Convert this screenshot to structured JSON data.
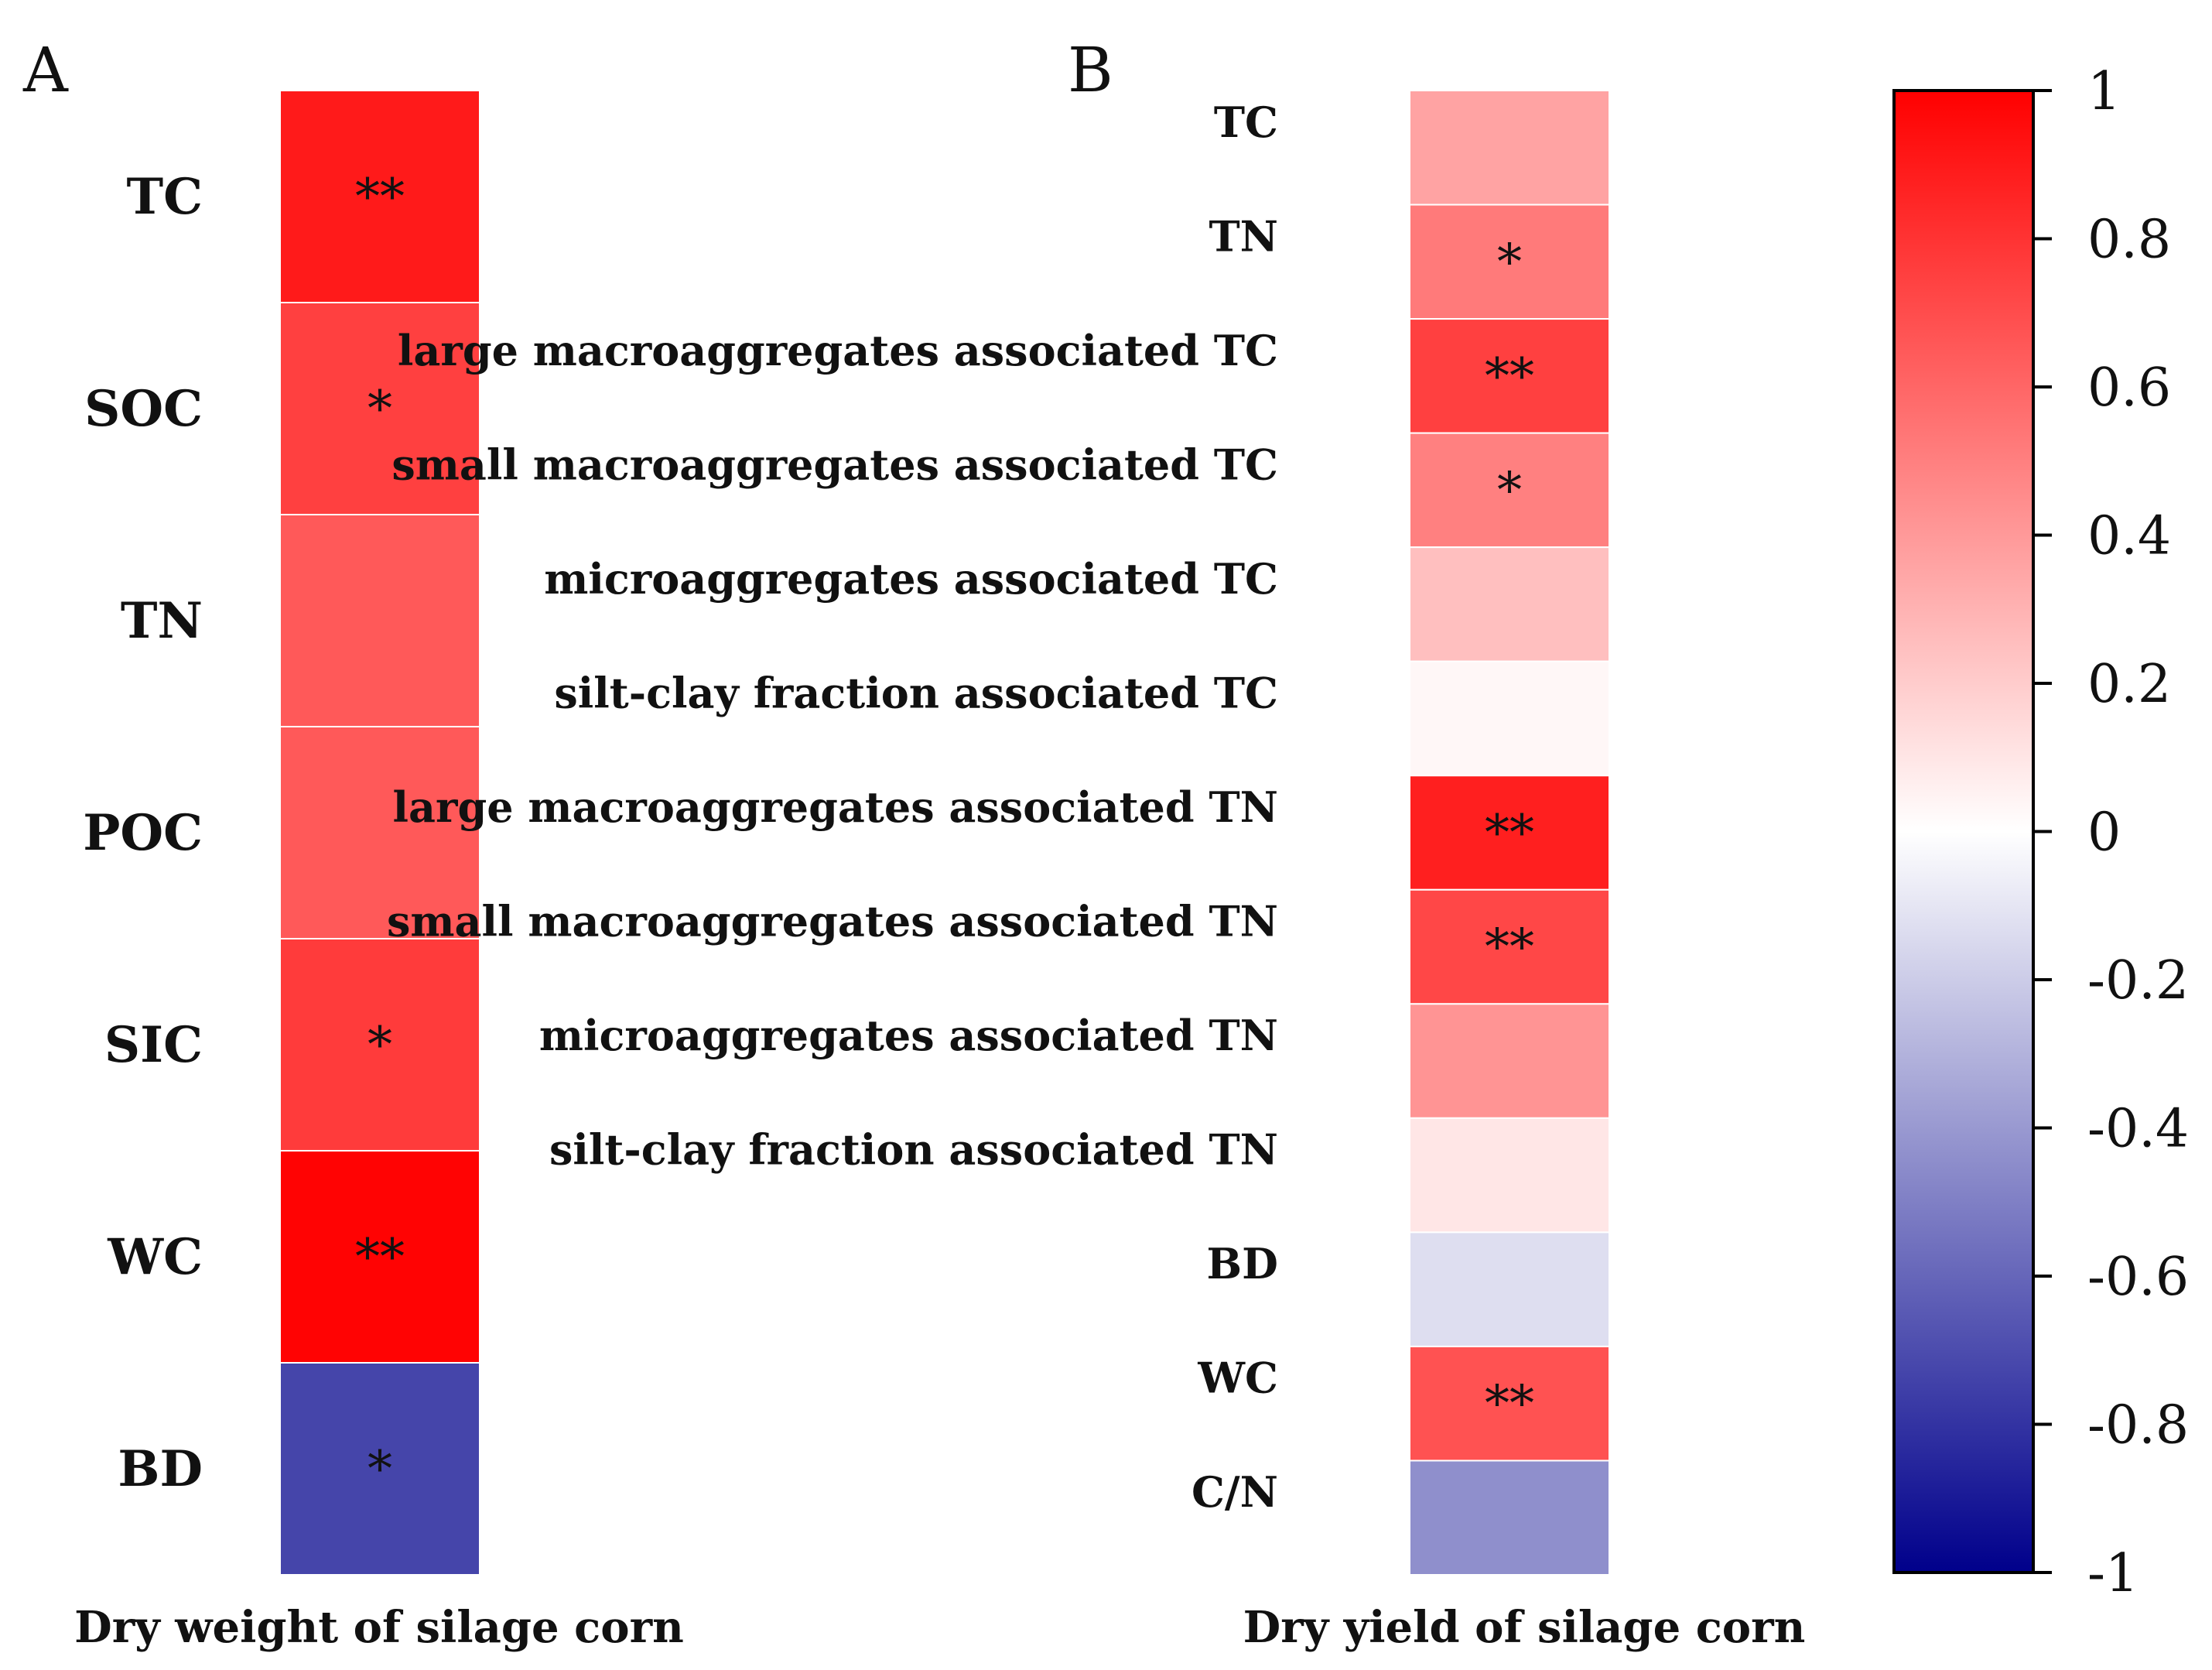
{
  "chart_data": [
    {
      "type": "heatmap",
      "panel": "A",
      "column_label": "Dry weight of silage corn",
      "rows": [
        "TC",
        "SOC",
        "TN",
        "POC",
        "SIC",
        "WC",
        "BD"
      ],
      "values": [
        0.9,
        0.75,
        0.65,
        0.65,
        0.77,
        0.99,
        -0.73
      ],
      "significance": [
        "**",
        "*",
        "",
        "",
        "*",
        "**",
        "*"
      ]
    },
    {
      "type": "heatmap",
      "panel": "B",
      "column_label": "Dry yield of silage corn",
      "rows": [
        "TC",
        "TN",
        "large macroaggregates associated TC",
        "small macroaggregates associated TC",
        "microaggregates associated TC",
        "silt-clay fraction associated TC",
        "large macroaggregates associated TN",
        "small macroaggregates associated TN",
        "microaggregates associated TN",
        "silt-clay fraction associated TN",
        "BD",
        "WC",
        "C/N"
      ],
      "values": [
        0.36,
        0.52,
        0.75,
        0.5,
        0.25,
        0.03,
        0.88,
        0.72,
        0.42,
        0.1,
        -0.13,
        0.68,
        -0.44
      ],
      "significance": [
        "",
        "*",
        "**",
        "*",
        "",
        "",
        "**",
        "**",
        "",
        "",
        "",
        "**",
        ""
      ]
    }
  ],
  "colorbar": {
    "min": -1,
    "max": 1,
    "ticks": [
      1,
      0.8,
      0.6,
      0.4,
      0.2,
      0,
      -0.2,
      -0.4,
      -0.6,
      -0.8,
      -1
    ],
    "tick_labels": [
      "1",
      "0.8",
      "0.6",
      "0.4",
      "0.2",
      "0",
      "-0.2",
      "-0.4",
      "-0.6",
      "-0.8",
      "-1"
    ],
    "color_high": "#ff0000",
    "color_mid": "#ffffff",
    "color_low": "#00008b"
  }
}
